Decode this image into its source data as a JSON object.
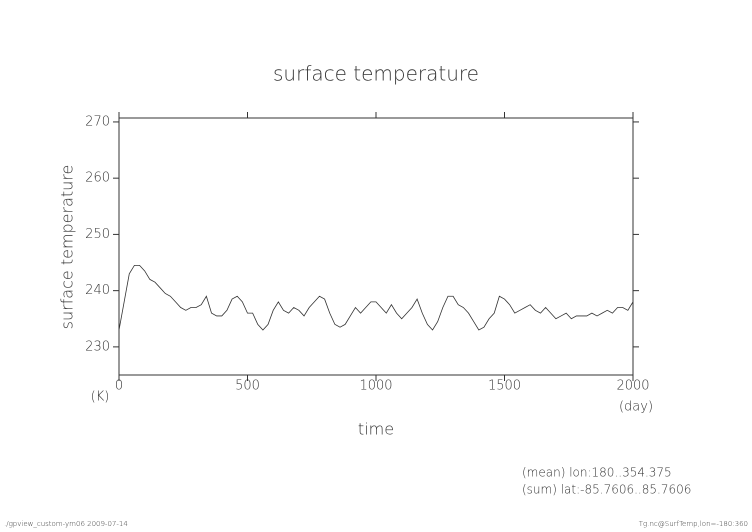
{
  "chart_data": {
    "type": "line",
    "title": "surface temperature",
    "y_label": "surface temperature",
    "y_unit": "(K)",
    "x_label": "time",
    "x_unit": "(day)",
    "annotations": [
      "(mean) lon:180..354.375",
      "(sum) lat:-85.7606..85.7606"
    ],
    "footer_left": "./gpview_custom-ym06  2009-07-14",
    "footer_right": "Tg.nc@SurfTemp,lon=-180:360",
    "xlim": [
      0,
      2000
    ],
    "xticks": [
      0,
      500,
      1000,
      1500,
      2000
    ],
    "ylim": [
      225,
      270.7
    ],
    "yticks": [
      230,
      240,
      250,
      260,
      270
    ],
    "color": "#333333",
    "x": [
      0,
      20,
      40,
      60,
      80,
      100,
      120,
      140,
      160,
      180,
      200,
      220,
      240,
      260,
      280,
      300,
      320,
      340,
      360,
      380,
      400,
      420,
      440,
      460,
      480,
      500,
      520,
      540,
      560,
      580,
      600,
      620,
      640,
      660,
      680,
      700,
      720,
      740,
      760,
      780,
      800,
      820,
      840,
      860,
      880,
      900,
      920,
      940,
      960,
      980,
      1000,
      1020,
      1040,
      1060,
      1080,
      1100,
      1120,
      1140,
      1160,
      1180,
      1200,
      1220,
      1240,
      1260,
      1280,
      1300,
      1320,
      1340,
      1360,
      1380,
      1400,
      1420,
      1440,
      1460,
      1480,
      1500,
      1520,
      1540,
      1560,
      1580,
      1600,
      1620,
      1640,
      1660,
      1680,
      1700,
      1720,
      1740,
      1760,
      1780,
      1800,
      1820,
      1840,
      1860,
      1880,
      1900,
      1920,
      1940,
      1960,
      1980,
      2000
    ],
    "values": [
      233,
      238,
      243,
      244.5,
      244.5,
      243.5,
      242,
      241.5,
      240.5,
      239.5,
      239,
      238,
      237,
      236.5,
      237,
      237,
      237.5,
      239,
      236,
      235.5,
      235.5,
      236.5,
      238.5,
      239,
      238,
      236,
      236,
      234,
      233,
      234,
      236.5,
      238,
      236.5,
      236,
      237,
      236.5,
      235.5,
      237,
      238,
      239,
      238.5,
      236,
      234,
      233.5,
      234,
      235.5,
      237,
      236,
      237,
      238,
      238,
      237,
      236,
      237.5,
      236,
      235,
      236,
      237,
      238.5,
      236,
      234,
      233,
      234.5,
      237,
      239,
      239,
      237.5,
      237,
      236,
      234.5,
      233,
      233.5,
      235,
      236,
      239,
      238.5,
      237.5,
      236,
      236.5,
      237,
      237.5,
      236.5,
      236,
      237,
      236,
      235,
      235.5,
      236,
      235,
      235.5,
      235.5,
      235.5,
      236,
      235.5,
      236,
      236.5,
      236,
      237,
      237,
      236.5,
      238
    ]
  }
}
